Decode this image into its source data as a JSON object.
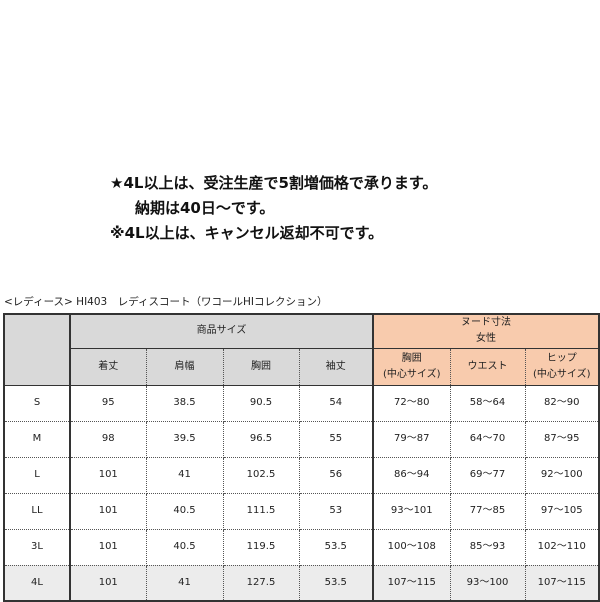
{
  "notes": [
    "★4L以上は、受注生産で5割増価格で承ります。",
    "納期は40日～です。",
    "※4L以上は、キャンセル返却不可です。"
  ],
  "title": "<レディース> HI403　レディスコート（ワコールHIコレクション）",
  "table": {
    "group_product": "商品サイズ",
    "group_nude": [
      "ヌード寸法",
      "女性"
    ],
    "columns": [
      "着丈",
      "肩幅",
      "胸囲",
      "袖丈",
      [
        "胸囲",
        "(中心サイズ)"
      ],
      "ウエスト",
      [
        "ヒップ",
        "(中心サイズ)"
      ]
    ],
    "rows": [
      [
        "S",
        "95",
        "38.5",
        "90.5",
        "54",
        "72～80",
        "58～64",
        "82～90"
      ],
      [
        "M",
        "98",
        "39.5",
        "96.5",
        "55",
        "79～87",
        "64～70",
        "87～95"
      ],
      [
        "L",
        "101",
        "41",
        "102.5",
        "56",
        "86～94",
        "69～77",
        "92～100"
      ],
      [
        "LL",
        "101",
        "40.5",
        "111.5",
        "53",
        "93～101",
        "77～85",
        "97～105"
      ],
      [
        "3L",
        "101",
        "40.5",
        "119.5",
        "53.5",
        "100～108",
        "85～93",
        "102～110"
      ],
      [
        "4L",
        "101",
        "41",
        "127.5",
        "53.5",
        "107～115",
        "93～100",
        "107～115"
      ]
    ],
    "colors": {
      "product_header": "#d9d9d9",
      "nude_header": "#f8cbad",
      "highlight_row": "#ececec"
    }
  }
}
